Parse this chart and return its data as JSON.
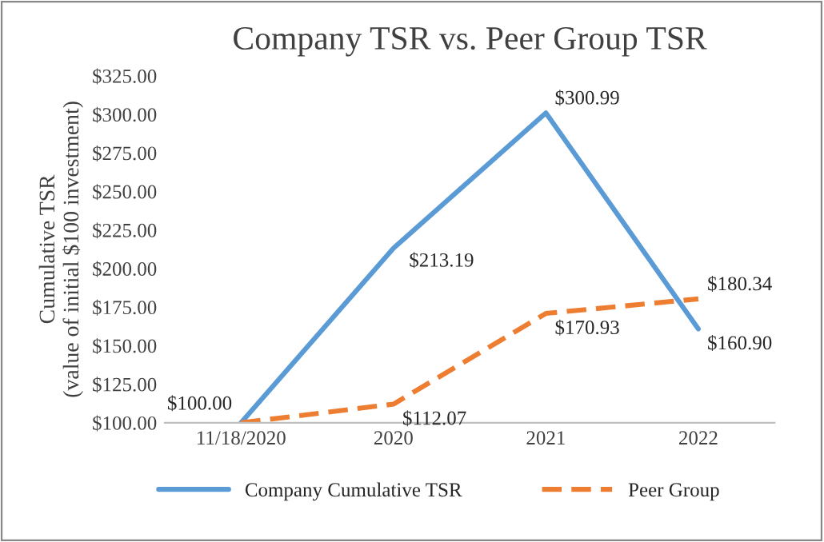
{
  "chart_data": {
    "type": "line",
    "title": "Company TSR vs. Peer Group TSR",
    "ylabel": "Cumulative TSR\n(value of initial $100 investment)",
    "categories": [
      "11/18/2020",
      "2020",
      "2021",
      "2022"
    ],
    "series": [
      {
        "name": "Company Cumulative TSR",
        "color": "#5b9bd5",
        "line_style": "solid",
        "values": [
          100.0,
          213.19,
          300.99,
          160.9
        ],
        "value_labels": [
          "$100.00",
          "$213.19",
          "$300.99",
          "$160.90"
        ]
      },
      {
        "name": "Peer Group",
        "color": "#ed7d31",
        "line_style": "dashed",
        "values": [
          100.0,
          112.07,
          170.93,
          180.34
        ],
        "value_labels": [
          null,
          "$112.07",
          "$170.93",
          "$180.34"
        ]
      }
    ],
    "ylim": [
      100,
      325
    ],
    "yticks": [
      {
        "value": 100,
        "label": "$100.00"
      },
      {
        "value": 125,
        "label": "$125.00"
      },
      {
        "value": 150,
        "label": "$150.00"
      },
      {
        "value": 175,
        "label": "$175.00"
      },
      {
        "value": 200,
        "label": "$200.00"
      },
      {
        "value": 225,
        "label": "$225.00"
      },
      {
        "value": 250,
        "label": "$250.00"
      },
      {
        "value": 275,
        "label": "$275.00"
      },
      {
        "value": 300,
        "label": "$300.00"
      },
      {
        "value": 325,
        "label": "$325.00"
      }
    ],
    "grid": false,
    "legend": "bottom",
    "marker": "none"
  }
}
